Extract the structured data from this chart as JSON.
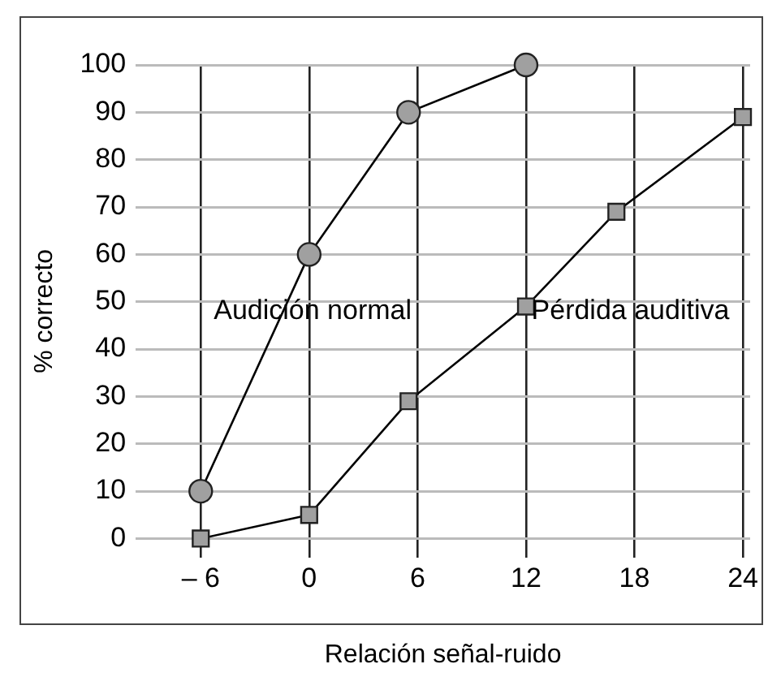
{
  "chart_data": {
    "type": "line",
    "xlabel": "Relación señal-ruido",
    "ylabel": "% correcto",
    "xlim": [
      -9.6,
      24.4
    ],
    "ylim": [
      -4,
      100
    ],
    "xticks": [
      {
        "value": -6,
        "label": "– 6"
      },
      0,
      6,
      12,
      18,
      24
    ],
    "yticks": [
      0,
      10,
      20,
      30,
      40,
      50,
      60,
      70,
      80,
      90,
      100
    ],
    "grid": true,
    "legend": false,
    "line_style": "solid",
    "series": [
      {
        "x": [
          -6,
          0,
          5.5,
          12
        ],
        "values": [
          10,
          60,
          90,
          100
        ],
        "color": "#a0a0a0",
        "marker": "circle"
      },
      {
        "x": [
          -6,
          0,
          5.5,
          12,
          17,
          24
        ],
        "values": [
          0,
          5,
          29,
          49,
          69,
          89
        ],
        "color": "#a0a0a0",
        "marker": "square"
      }
    ],
    "annotations": [
      "Audición normal",
      "Pérdida auditiva"
    ]
  }
}
